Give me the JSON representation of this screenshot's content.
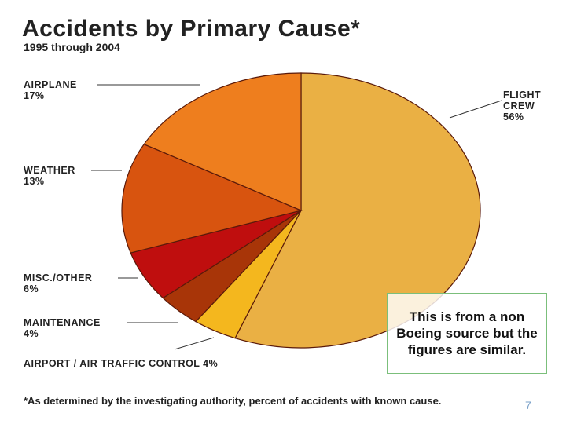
{
  "chart_data": {
    "type": "pie",
    "title": "Accidents by Primary Cause*",
    "subtitle": "1995 through 2004",
    "slices": [
      {
        "name": "FLIGHT CREW",
        "value": 56,
        "label": "56%",
        "color": "#eab044"
      },
      {
        "name": "AIRPORT / AIR TRAFFIC CONTROL",
        "value": 4,
        "label": "4%",
        "color": "#f4b71e"
      },
      {
        "name": "MAINTENANCE",
        "value": 4,
        "label": "4%",
        "color": "#a83508"
      },
      {
        "name": "MISC./OTHER",
        "value": 6,
        "label": "6%",
        "color": "#bf0e0e"
      },
      {
        "name": "WEATHER",
        "value": 13,
        "label": "13%",
        "color": "#d8540f"
      },
      {
        "name": "AIRPLANE",
        "value": 17,
        "label": "17%",
        "color": "#ee7e1e"
      }
    ],
    "footnote": "*As determined by the investigating authority, percent of accidents with known cause.",
    "legend": "none"
  },
  "note": "This is from a non Boeing source but the figures are similar.",
  "page_number": "7"
}
